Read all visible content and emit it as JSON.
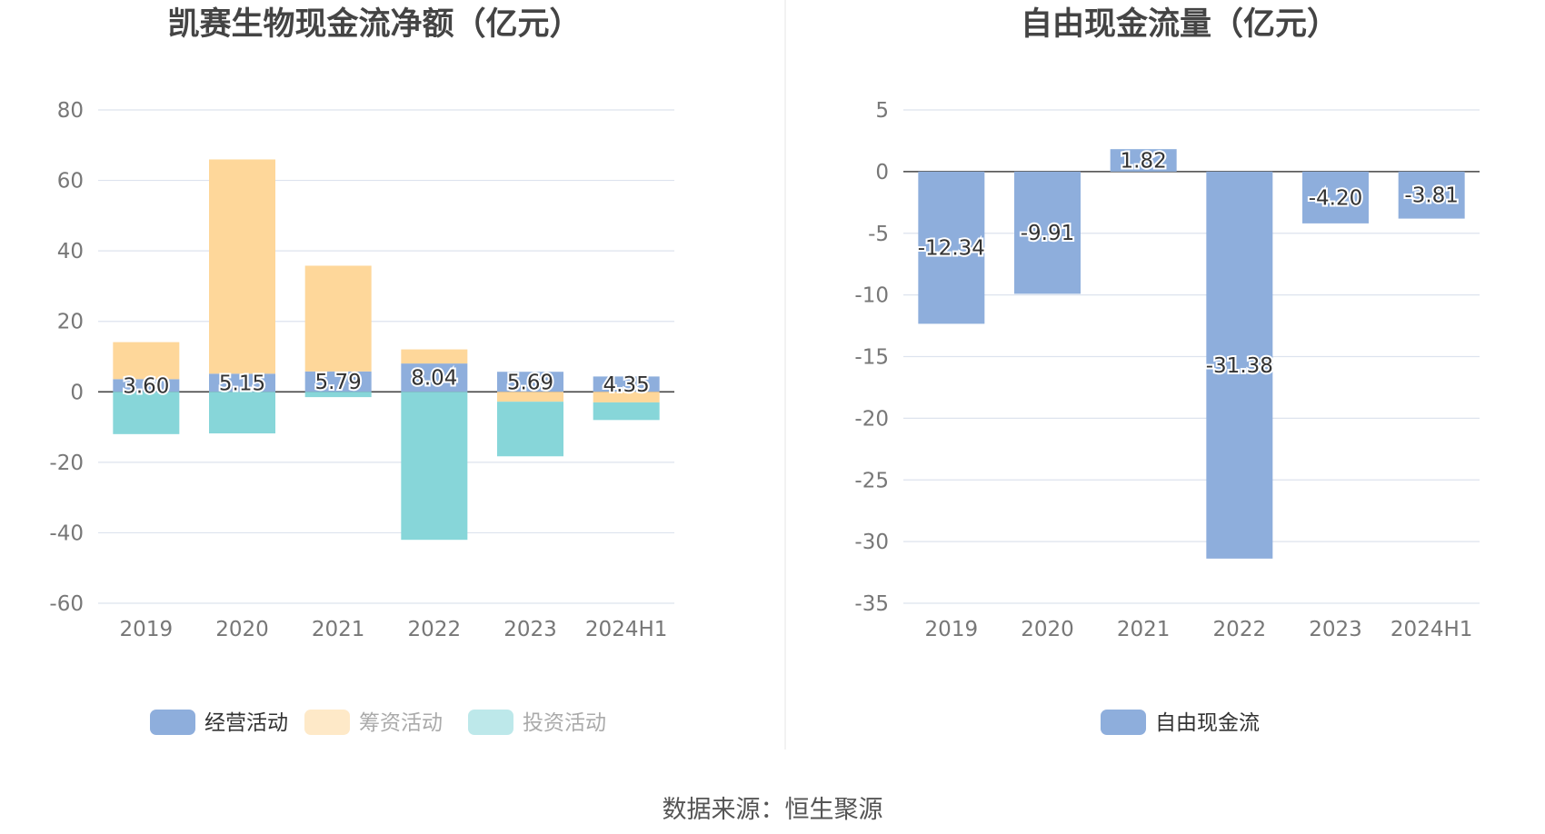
{
  "source_label": "数据来源：恒生聚源",
  "chart_data": [
    {
      "type": "bar",
      "stacked": true,
      "title": "凯赛生物现金流净额（亿元）",
      "categories": [
        "2019",
        "2020",
        "2021",
        "2022",
        "2023",
        "2024H1"
      ],
      "ylim": [
        -60,
        80
      ],
      "yticks": [
        80,
        60,
        40,
        20,
        0,
        -20,
        -40,
        -60
      ],
      "grid": true,
      "legend_position": "bottom",
      "series": [
        {
          "name": "经营活动",
          "color": "#8eaedc",
          "values": [
            3.6,
            5.15,
            5.79,
            8.04,
            5.69,
            4.35
          ],
          "labels": [
            "3.60",
            "5.15",
            "5.79",
            "8.04",
            "5.69",
            "4.35"
          ]
        },
        {
          "name": "筹资活动",
          "color": "#fed79a",
          "values": [
            10.5,
            60.8,
            30.0,
            4.0,
            -2.8,
            -3.0
          ]
        },
        {
          "name": "投资活动",
          "color": "#87d6d9",
          "values": [
            -12.0,
            -11.8,
            -1.5,
            -42.0,
            -15.5,
            -5.0
          ]
        }
      ]
    },
    {
      "type": "bar",
      "title": "自由现金流量（亿元）",
      "categories": [
        "2019",
        "2020",
        "2021",
        "2022",
        "2023",
        "2024H1"
      ],
      "ylim": [
        -35,
        5
      ],
      "yticks": [
        5,
        0,
        -5,
        -10,
        -15,
        -20,
        -25,
        -30,
        -35
      ],
      "grid": true,
      "legend_position": "bottom",
      "series": [
        {
          "name": "自由现金流",
          "color": "#8eaedc",
          "values": [
            -12.34,
            -9.91,
            1.82,
            -31.38,
            -4.2,
            -3.81
          ],
          "labels": [
            "-12.34",
            "-9.91",
            "1.82",
            "-31.38",
            "-4.20",
            "-3.81"
          ]
        }
      ]
    }
  ]
}
